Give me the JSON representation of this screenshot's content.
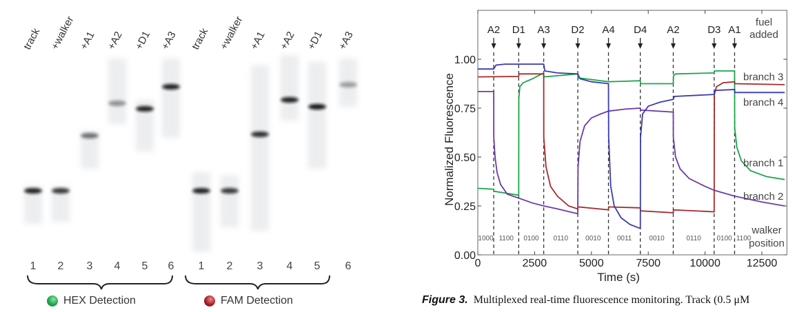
{
  "gel": {
    "lanes": [
      "track",
      "+walker",
      "+A1",
      "+A2",
      "+D1",
      "+A3"
    ],
    "lane_numbers": [
      "1",
      "2",
      "3",
      "4",
      "5",
      "6"
    ],
    "panels": [
      {
        "label": "HEX Detection",
        "color": "#1aa64a"
      },
      {
        "label": "FAM Detection",
        "color": "#a51c24"
      }
    ]
  },
  "chart_data": {
    "type": "line",
    "xlabel": "Time (s)",
    "ylabel": "Normalized Fluorescence",
    "xlim": [
      0,
      13600
    ],
    "ylim": [
      0,
      1.25
    ],
    "xticks": [
      0,
      2500,
      5000,
      7500,
      10000,
      12500
    ],
    "xtick_labels": [
      "0",
      "2500",
      "5000",
      "7500",
      "10000",
      "12500"
    ],
    "yticks": [
      0,
      0.25,
      0.5,
      0.75,
      1.0
    ],
    "ytick_labels": [
      "0.00",
      "0.25",
      "0.50",
      "0.75",
      "1.00"
    ],
    "fuel_header": [
      "fuel",
      "added"
    ],
    "fuel_events": [
      {
        "t": 700,
        "label": "A2"
      },
      {
        "t": 1800,
        "label": "D1"
      },
      {
        "t": 2900,
        "label": "A3"
      },
      {
        "t": 4400,
        "label": "D2"
      },
      {
        "t": 5750,
        "label": "A4"
      },
      {
        "t": 7150,
        "label": "D4"
      },
      {
        "t": 8600,
        "label": "A2"
      },
      {
        "t": 10400,
        "label": "D3"
      },
      {
        "t": 11300,
        "label": "A1"
      }
    ],
    "walker_header": [
      "walker",
      "position"
    ],
    "walker_positions": [
      {
        "t": 350,
        "label": "1000"
      },
      {
        "t": 1250,
        "label": "1100"
      },
      {
        "t": 2350,
        "label": "0100"
      },
      {
        "t": 3650,
        "label": "0110"
      },
      {
        "t": 5075,
        "label": "0010"
      },
      {
        "t": 6450,
        "label": "0011"
      },
      {
        "t": 7875,
        "label": "0010"
      },
      {
        "t": 9500,
        "label": "0110"
      },
      {
        "t": 10850,
        "label": "0100"
      },
      {
        "t": 11700,
        "label": "1100"
      }
    ],
    "series": [
      {
        "name": "branch 1",
        "color": "#1aa64a",
        "label_value": 0.47,
        "points": [
          [
            0,
            0.34
          ],
          [
            700,
            0.335
          ],
          [
            710,
            0.325
          ],
          [
            1800,
            0.305
          ],
          [
            1805,
            0.8
          ],
          [
            1850,
            0.86
          ],
          [
            2000,
            0.88
          ],
          [
            2400,
            0.9
          ],
          [
            2900,
            0.93
          ],
          [
            2905,
            0.91
          ],
          [
            4400,
            0.925
          ],
          [
            4410,
            0.905
          ],
          [
            5750,
            0.885
          ],
          [
            7150,
            0.89
          ],
          [
            7160,
            0.875
          ],
          [
            8600,
            0.875
          ],
          [
            8610,
            0.915
          ],
          [
            8700,
            0.925
          ],
          [
            10400,
            0.93
          ],
          [
            10410,
            0.94
          ],
          [
            11300,
            0.94
          ],
          [
            11305,
            0.65
          ],
          [
            11400,
            0.55
          ],
          [
            11600,
            0.48
          ],
          [
            12000,
            0.43
          ],
          [
            12700,
            0.4
          ],
          [
            13500,
            0.385
          ]
        ]
      },
      {
        "name": "branch 2",
        "color": "#6a3aa8",
        "label_value": 0.3,
        "points": [
          [
            0,
            0.835
          ],
          [
            700,
            0.835
          ],
          [
            705,
            0.6
          ],
          [
            760,
            0.5
          ],
          [
            850,
            0.42
          ],
          [
            1000,
            0.36
          ],
          [
            1300,
            0.31
          ],
          [
            1800,
            0.29
          ],
          [
            2400,
            0.265
          ],
          [
            2900,
            0.25
          ],
          [
            3500,
            0.235
          ],
          [
            4400,
            0.21
          ],
          [
            4410,
            0.45
          ],
          [
            4500,
            0.58
          ],
          [
            4700,
            0.66
          ],
          [
            5000,
            0.7
          ],
          [
            5400,
            0.72
          ],
          [
            5750,
            0.735
          ],
          [
            6500,
            0.745
          ],
          [
            7150,
            0.75
          ],
          [
            7160,
            0.74
          ],
          [
            8600,
            0.73
          ],
          [
            8605,
            0.6
          ],
          [
            8700,
            0.5
          ],
          [
            8900,
            0.44
          ],
          [
            9300,
            0.39
          ],
          [
            10000,
            0.35
          ],
          [
            10400,
            0.33
          ],
          [
            11300,
            0.3
          ],
          [
            12500,
            0.27
          ],
          [
            13500,
            0.25
          ]
        ]
      },
      {
        "name": "branch 3",
        "color": "#a52a2a",
        "label_value": 0.91,
        "points": [
          [
            0,
            0.91
          ],
          [
            1800,
            0.912
          ],
          [
            1810,
            0.925
          ],
          [
            2900,
            0.925
          ],
          [
            2905,
            0.6
          ],
          [
            3000,
            0.45
          ],
          [
            3200,
            0.35
          ],
          [
            3500,
            0.3
          ],
          [
            4000,
            0.25
          ],
          [
            4400,
            0.235
          ],
          [
            4410,
            0.245
          ],
          [
            5750,
            0.23
          ],
          [
            5760,
            0.245
          ],
          [
            7150,
            0.24
          ],
          [
            7160,
            0.225
          ],
          [
            8600,
            0.215
          ],
          [
            8610,
            0.23
          ],
          [
            10400,
            0.22
          ],
          [
            10410,
            0.82
          ],
          [
            10500,
            0.86
          ],
          [
            10800,
            0.88
          ],
          [
            11300,
            0.885
          ],
          [
            11310,
            0.875
          ],
          [
            13500,
            0.87
          ]
        ]
      },
      {
        "name": "branch 4",
        "color": "#3a3ab0",
        "label_value": 0.78,
        "points": [
          [
            0,
            0.95
          ],
          [
            700,
            0.95
          ],
          [
            800,
            0.97
          ],
          [
            1200,
            0.975
          ],
          [
            2900,
            0.975
          ],
          [
            2950,
            0.94
          ],
          [
            3500,
            0.93
          ],
          [
            4400,
            0.925
          ],
          [
            4500,
            0.9
          ],
          [
            5000,
            0.885
          ],
          [
            5750,
            0.875
          ],
          [
            5760,
            0.6
          ],
          [
            5850,
            0.35
          ],
          [
            6000,
            0.25
          ],
          [
            6300,
            0.19
          ],
          [
            6700,
            0.155
          ],
          [
            7150,
            0.135
          ],
          [
            7160,
            0.6
          ],
          [
            7250,
            0.72
          ],
          [
            7500,
            0.76
          ],
          [
            8000,
            0.78
          ],
          [
            8600,
            0.795
          ],
          [
            8650,
            0.81
          ],
          [
            10400,
            0.82
          ],
          [
            10410,
            0.84
          ],
          [
            11300,
            0.845
          ],
          [
            11310,
            0.83
          ],
          [
            13500,
            0.83
          ]
        ]
      }
    ]
  },
  "caption": {
    "label": "Figure 3.",
    "text": "Multiplexed real-time fluorescence monitoring. Track (0.5 μM"
  }
}
